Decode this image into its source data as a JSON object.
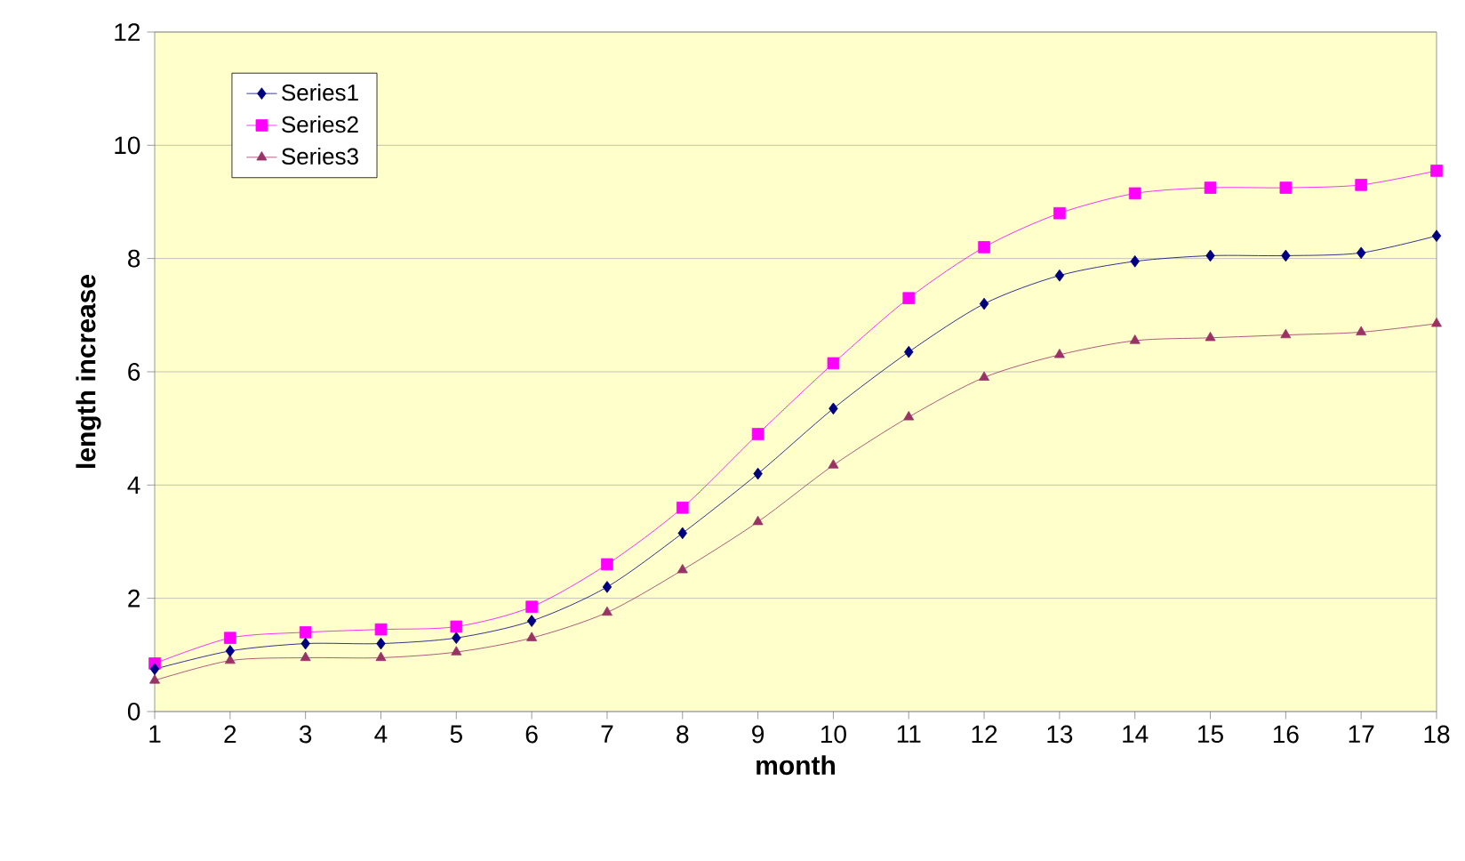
{
  "chart_data": {
    "type": "line",
    "xlabel": "month",
    "ylabel": "length increase",
    "x": [
      1,
      2,
      3,
      4,
      5,
      6,
      7,
      8,
      9,
      10,
      11,
      12,
      13,
      14,
      15,
      16,
      17,
      18
    ],
    "series": [
      {
        "name": "Series1",
        "color": "#000080",
        "marker": "diamond",
        "values": [
          0.75,
          1.07,
          1.2,
          1.2,
          1.3,
          1.6,
          2.2,
          3.15,
          4.2,
          5.35,
          6.35,
          7.2,
          7.7,
          7.95,
          8.05,
          8.05,
          8.1,
          8.4
        ]
      },
      {
        "name": "Series2",
        "color": "#ff00ff",
        "marker": "square",
        "values": [
          0.85,
          1.3,
          1.4,
          1.45,
          1.5,
          1.85,
          2.6,
          3.6,
          4.9,
          6.15,
          7.3,
          8.2,
          8.8,
          9.15,
          9.25,
          9.25,
          9.3,
          9.55
        ]
      },
      {
        "name": "Series3",
        "color": "#993366",
        "marker": "triangle",
        "values": [
          0.55,
          0.9,
          0.95,
          0.95,
          1.05,
          1.3,
          1.75,
          2.5,
          3.35,
          4.35,
          5.2,
          5.9,
          6.3,
          6.55,
          6.6,
          6.65,
          6.7,
          6.85
        ]
      }
    ],
    "xlim": [
      1,
      18
    ],
    "xticks": [
      1,
      2,
      3,
      4,
      5,
      6,
      7,
      8,
      9,
      10,
      11,
      12,
      13,
      14,
      15,
      16,
      17,
      18
    ],
    "ylim": [
      0,
      12
    ],
    "yticks": [
      0,
      2,
      4,
      6,
      8,
      10,
      12
    ],
    "grid": "y",
    "legend": "top left",
    "line_style": "solid"
  }
}
